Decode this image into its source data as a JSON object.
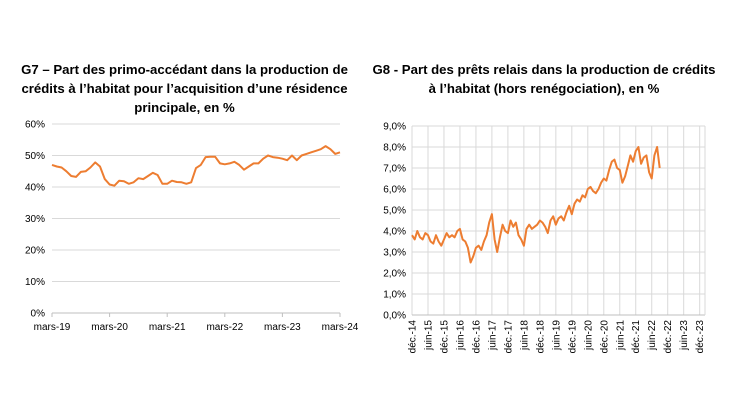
{
  "chart_data": [
    {
      "type": "line",
      "title": "G7 – Part des primo-accédant dans la production de\ncrédits à l’habitat pour l’acquisition d’une résidence\nprincipale, en %",
      "xlabel": "",
      "ylabel": "",
      "x_tick_labels": [
        "mars-19",
        "mars-20",
        "mars-21",
        "mars-22",
        "mars-23",
        "mars-24"
      ],
      "y_tick_labels": [
        "0%",
        "10%",
        "20%",
        "30%",
        "40%",
        "50%",
        "60%"
      ],
      "ylim": [
        0,
        60
      ],
      "x_range": [
        "2019-03",
        "2024-03"
      ],
      "grid": "horizontal",
      "line_color": "#ED7D31",
      "series": [
        {
          "x_start": "2019-03",
          "frequency": "monthly",
          "values": [
            47,
            46.5,
            46.2,
            45,
            43.5,
            43.2,
            44.8,
            45,
            46.2,
            47.8,
            46.5,
            42.5,
            40.8,
            40.4,
            42,
            41.8,
            41,
            41.5,
            42.8,
            42.5,
            43.5,
            44.5,
            43.8,
            41,
            41,
            42,
            41.6,
            41.5,
            41,
            41.5,
            46,
            47,
            49.5,
            49.6,
            49.6,
            47.5,
            47.2,
            47.5,
            48,
            47,
            45.5,
            46.5,
            47.5,
            47.5,
            49,
            50,
            49.5,
            49.3,
            49,
            48.5,
            50,
            48.5,
            50,
            50.5,
            51,
            51.5,
            52,
            53,
            52,
            50.5,
            51
          ]
        }
      ]
    },
    {
      "type": "line",
      "title": "G8 - Part des prêts relais dans la production de crédits\nà l’habitat (hors renégociation), en %",
      "xlabel": "",
      "ylabel": "",
      "x_tick_labels": [
        "déc.-14",
        "juin-15",
        "déc.-15",
        "juin-16",
        "déc.-16",
        "juin-17",
        "déc.-17",
        "juin-18",
        "déc.-18",
        "juin-19",
        "déc.-19",
        "juin-20",
        "déc.-20",
        "juin-21",
        "déc.-21",
        "juin-22",
        "déc.-22",
        "juin-23",
        "déc.-23"
      ],
      "y_tick_labels": [
        "0,0%",
        "1,0%",
        "2,0%",
        "3,0%",
        "4,0%",
        "5,0%",
        "6,0%",
        "7,0%",
        "8,0%",
        "9,0%"
      ],
      "ylim": [
        0,
        9
      ],
      "x_range": [
        "2014-12",
        "2024-02"
      ],
      "grid": "both",
      "line_color": "#ED7D31",
      "series": [
        {
          "x_start": "2014-12",
          "frequency": "monthly",
          "values": [
            3.8,
            3.6,
            4,
            3.7,
            3.6,
            3.9,
            3.8,
            3.5,
            3.4,
            3.8,
            3.5,
            3.3,
            3.6,
            3.9,
            3.7,
            3.8,
            3.7,
            4,
            4.1,
            3.6,
            3.5,
            3.2,
            2.5,
            2.8,
            3.2,
            3.3,
            3.1,
            3.5,
            3.8,
            4.4,
            4.8,
            3.6,
            3.0,
            3.7,
            4.3,
            4.0,
            3.9,
            4.5,
            4.2,
            4.4,
            3.8,
            3.6,
            3.3,
            4.1,
            4.3,
            4.1,
            4.2,
            4.3,
            4.5,
            4.4,
            4.2,
            3.9,
            4.5,
            4.7,
            4.3,
            4.6,
            4.7,
            4.5,
            4.9,
            5.2,
            4.8,
            5.3,
            5.5,
            5.4,
            5.7,
            5.6,
            6.0,
            6.1,
            5.9,
            5.8,
            6.0,
            6.3,
            6.5,
            6.4,
            6.9,
            7.3,
            7.4,
            7.0,
            6.9,
            6.3,
            6.6,
            7.1,
            7.6,
            7.3,
            7.8,
            8.0,
            7.2,
            7.5,
            7.6,
            6.8,
            6.5,
            7.6,
            8.0,
            7.0
          ]
        }
      ]
    }
  ]
}
